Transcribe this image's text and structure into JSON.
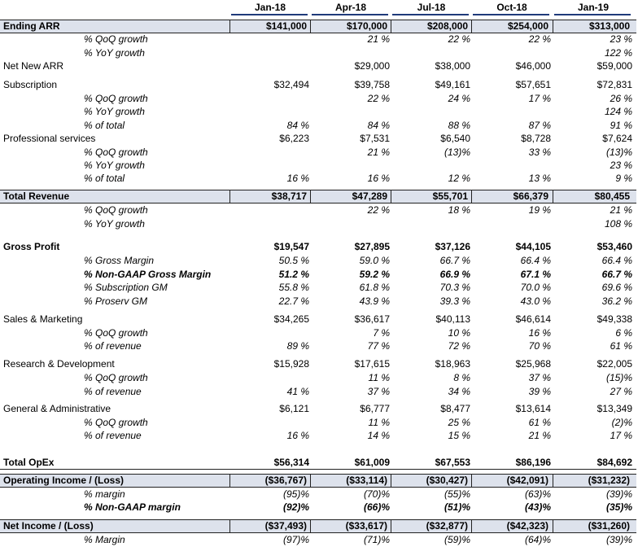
{
  "header": {
    "columns": [
      "Jan-18",
      "Apr-18",
      "Jul-18",
      "Oct-18",
      "Jan-19"
    ]
  },
  "table": {
    "rows": [
      [
        "Ending ARR",
        "$141,000",
        "$170,000",
        "$208,000",
        "$254,000",
        "$313,000"
      ],
      [
        "% QoQ growth",
        null,
        "21 %",
        "22 %",
        "22 %",
        "23 %"
      ],
      [
        "% YoY growth",
        null,
        null,
        null,
        null,
        "122 %"
      ],
      [
        "Net New ARR",
        null,
        "$29,000",
        "$38,000",
        "$46,000",
        "$59,000"
      ],
      [
        "Subscription",
        "$32,494",
        "$39,758",
        "$49,161",
        "$57,651",
        "$72,831"
      ],
      [
        "% QoQ growth",
        null,
        "22 %",
        "24 %",
        "17 %",
        "26 %"
      ],
      [
        "% YoY growth",
        null,
        null,
        null,
        null,
        "124 %"
      ],
      [
        "% of total",
        "84 %",
        "84 %",
        "88 %",
        "87 %",
        "91 %"
      ],
      [
        "Professional services",
        "$6,223",
        "$7,531",
        "$6,540",
        "$8,728",
        "$7,624"
      ],
      [
        "% QoQ growth",
        null,
        "21 %",
        "(13)%",
        "33 %",
        "(13)%"
      ],
      [
        "% YoY growth",
        null,
        null,
        null,
        null,
        "23 %"
      ],
      [
        "% of total",
        "16 %",
        "16 %",
        "12 %",
        "13 %",
        "9 %"
      ],
      [
        "Total Revenue",
        "$38,717",
        "$47,289",
        "$55,701",
        "$66,379",
        "$80,455"
      ],
      [
        "% QoQ growth",
        null,
        "22 %",
        "18 %",
        "19 %",
        "21 %"
      ],
      [
        "% YoY growth",
        null,
        null,
        null,
        null,
        "108 %"
      ],
      [
        "Gross Profit",
        "$19,547",
        "$27,895",
        "$37,126",
        "$44,105",
        "$53,460"
      ],
      [
        "% Gross Margin",
        "50.5 %",
        "59.0 %",
        "66.7 %",
        "66.4 %",
        "66.4 %"
      ],
      [
        "% Non-GAAP Gross Margin",
        "51.2 %",
        "59.2 %",
        "66.9 %",
        "67.1 %",
        "66.7 %"
      ],
      [
        "% Subscription GM",
        "55.8 %",
        "61.8 %",
        "70.3 %",
        "70.0 %",
        "69.6 %"
      ],
      [
        "% Proserv GM",
        "22.7 %",
        "43.9 %",
        "39.3 %",
        "43.0 %",
        "36.2 %"
      ],
      [
        "Sales & Marketing",
        "$34,265",
        "$36,617",
        "$40,113",
        "$46,614",
        "$49,338"
      ],
      [
        "% QoQ growth",
        null,
        "7 %",
        "10 %",
        "16 %",
        "6 %"
      ],
      [
        "% of revenue",
        "89 %",
        "77 %",
        "72 %",
        "70 %",
        "61 %"
      ],
      [
        "Research & Development",
        "$15,928",
        "$17,615",
        "$18,963",
        "$25,968",
        "$22,005"
      ],
      [
        "% QoQ growth",
        null,
        "11 %",
        "8 %",
        "37 %",
        "(15)%"
      ],
      [
        "% of revenue",
        "41 %",
        "37 %",
        "34 %",
        "39 %",
        "27 %"
      ],
      [
        "General & Administrative",
        "$6,121",
        "$6,777",
        "$8,477",
        "$13,614",
        "$13,349"
      ],
      [
        "% QoQ growth",
        null,
        "11 %",
        "25 %",
        "61 %",
        "(2)%"
      ],
      [
        "% of revenue",
        "16 %",
        "14 %",
        "15 %",
        "21 %",
        "17 %"
      ],
      [
        "Total OpEx",
        "$56,314",
        "$61,009",
        "$67,553",
        "$86,196",
        "$84,692"
      ],
      [
        "Operating Income / (Loss)",
        "($36,767)",
        "($33,114)",
        "($30,427)",
        "($42,091)",
        "($31,232)"
      ],
      [
        "% margin",
        "(95)%",
        "(70)%",
        "(55)%",
        "(63)%",
        "(39)%"
      ],
      [
        "% Non-GAAP margin",
        "(92)%",
        "(66)%",
        "(51)%",
        "(43)%",
        "(35)%"
      ],
      [
        "Net Income / (Loss)",
        "($37,493)",
        "($33,617)",
        "($32,877)",
        "($42,323)",
        "($31,260)"
      ],
      [
        "% Margin",
        "(97)%",
        "(71)%",
        "(59)%",
        "(64)%",
        "(39)%"
      ]
    ]
  }
}
